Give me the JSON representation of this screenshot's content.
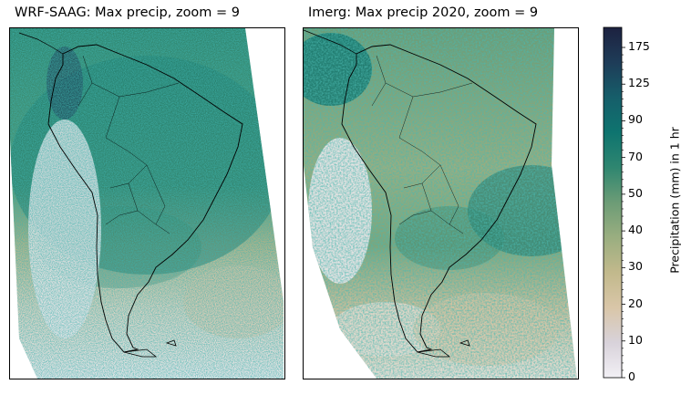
{
  "chart_data": [
    {
      "type": "heatmap",
      "title": "WRF-SAAG: Max precip, zoom = 9"
    },
    {
      "type": "heatmap",
      "title": "Imerg: Max precip 2020, zoom = 9"
    }
  ],
  "colorbar": {
    "label": "Precipitation (mm) in 1 hr",
    "ticks": [
      0,
      10,
      20,
      30,
      40,
      50,
      70,
      90,
      125,
      175
    ],
    "tick_labels": [
      "0",
      "10",
      "20",
      "30",
      "40",
      "50",
      "70",
      "90",
      "125",
      "175"
    ],
    "max": 190,
    "colors": [
      "#f2f0f5",
      "#d8d2da",
      "#d9c6a8",
      "#c2b98c",
      "#9aae80",
      "#6c9c76",
      "#2f8670",
      "#0e746f",
      "#165e6a",
      "#1e3c58",
      "#1d2240"
    ]
  }
}
